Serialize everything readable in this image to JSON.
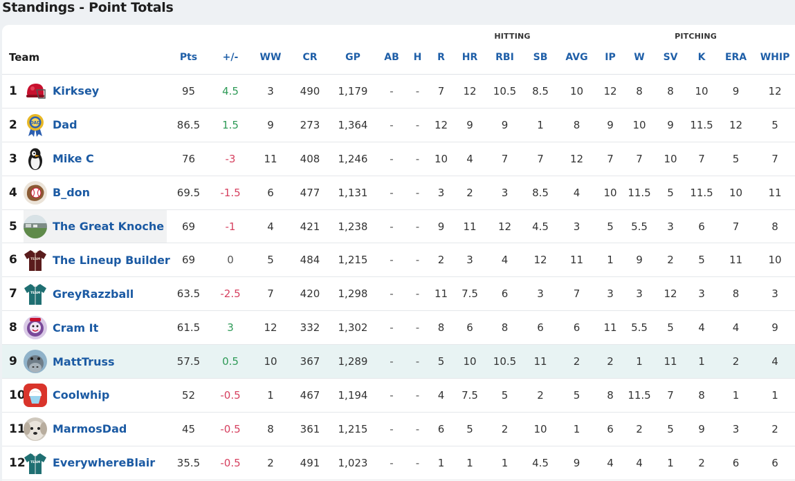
{
  "page": {
    "title": "Standings - Point Totals"
  },
  "groups": {
    "hitting": "HITTING",
    "pitching": "PITCHING"
  },
  "columns": [
    "Team",
    "Pts",
    "+/-",
    "WW",
    "CR",
    "GP",
    "AB",
    "H",
    "R",
    "HR",
    "RBI",
    "SB",
    "AVG",
    "IP",
    "W",
    "SV",
    "K",
    "ERA",
    "WHIP"
  ],
  "rows": [
    {
      "rank": "1",
      "team": "Kirksey",
      "pts": "95",
      "pm": "4.5",
      "ww": "3",
      "cr": "490",
      "gp": "1,179",
      "ab": "-",
      "h": "-",
      "r": "7",
      "hr": "12",
      "rbi": "10.5",
      "sb": "8.5",
      "avg": "10",
      "ip": "12",
      "w": "8",
      "sv": "8",
      "k": "10",
      "era": "9",
      "whip": "12",
      "logo": "helmet-logo"
    },
    {
      "rank": "2",
      "team": "Dad",
      "pts": "86.5",
      "pm": "1.5",
      "ww": "9",
      "cr": "273",
      "gp": "1,364",
      "ab": "-",
      "h": "-",
      "r": "12",
      "hr": "9",
      "rbi": "9",
      "sb": "1",
      "avg": "8",
      "ip": "9",
      "w": "10",
      "sv": "9",
      "k": "11.5",
      "era": "12",
      "whip": "5",
      "logo": "award-ribbon-logo"
    },
    {
      "rank": "3",
      "team": "Mike C",
      "pts": "76",
      "pm": "-3",
      "ww": "11",
      "cr": "408",
      "gp": "1,246",
      "ab": "-",
      "h": "-",
      "r": "10",
      "hr": "4",
      "rbi": "7",
      "sb": "7",
      "avg": "12",
      "ip": "7",
      "w": "7",
      "sv": "10",
      "k": "7",
      "era": "5",
      "whip": "7",
      "logo": "penguin-logo"
    },
    {
      "rank": "4",
      "team": "B_don",
      "pts": "69.5",
      "pm": "-1.5",
      "ww": "6",
      "cr": "477",
      "gp": "1,131",
      "ab": "-",
      "h": "-",
      "r": "3",
      "hr": "2",
      "rbi": "3",
      "sb": "8.5",
      "avg": "4",
      "ip": "10",
      "w": "11.5",
      "sv": "5",
      "k": "11.5",
      "era": "10",
      "whip": "11",
      "logo": "baseball-glove-logo"
    },
    {
      "rank": "5",
      "team": "The Great Knoche",
      "pts": "69",
      "pm": "-1",
      "ww": "4",
      "cr": "421",
      "gp": "1,238",
      "ab": "-",
      "h": "-",
      "r": "9",
      "hr": "11",
      "rbi": "12",
      "sb": "4.5",
      "avg": "3",
      "ip": "5",
      "w": "5.5",
      "sv": "3",
      "k": "6",
      "era": "7",
      "whip": "8",
      "logo": "stadium-photo-logo"
    },
    {
      "rank": "6",
      "team": "The Lineup Builder",
      "pts": "69",
      "pm": "0",
      "ww": "5",
      "cr": "484",
      "gp": "1,215",
      "ab": "-",
      "h": "-",
      "r": "2",
      "hr": "3",
      "rbi": "4",
      "sb": "12",
      "avg": "11",
      "ip": "1",
      "w": "9",
      "sv": "2",
      "k": "5",
      "era": "11",
      "whip": "10",
      "logo": "maroon-jersey-logo"
    },
    {
      "rank": "7",
      "team": "GreyRazzball",
      "pts": "63.5",
      "pm": "-2.5",
      "ww": "7",
      "cr": "420",
      "gp": "1,298",
      "ab": "-",
      "h": "-",
      "r": "11",
      "hr": "7.5",
      "rbi": "6",
      "sb": "3",
      "avg": "7",
      "ip": "3",
      "w": "3",
      "sv": "12",
      "k": "3",
      "era": "8",
      "whip": "3",
      "logo": "teal-jersey-logo"
    },
    {
      "rank": "8",
      "team": "Cram It",
      "pts": "61.5",
      "pm": "3",
      "ww": "12",
      "cr": "332",
      "gp": "1,302",
      "ab": "-",
      "h": "-",
      "r": "8",
      "hr": "6",
      "rbi": "8",
      "sb": "6",
      "avg": "6",
      "ip": "11",
      "w": "5.5",
      "sv": "5",
      "k": "4",
      "era": "4",
      "whip": "9",
      "logo": "purple-mascot-logo"
    },
    {
      "rank": "9",
      "team": "MattTruss",
      "pts": "57.5",
      "pm": "0.5",
      "ww": "10",
      "cr": "367",
      "gp": "1,289",
      "ab": "-",
      "h": "-",
      "r": "5",
      "hr": "10",
      "rbi": "10.5",
      "sb": "11",
      "avg": "2",
      "ip": "2",
      "w": "1",
      "sv": "11",
      "k": "1",
      "era": "2",
      "whip": "4",
      "logo": "hippo-logo"
    },
    {
      "rank": "10",
      "team": "Coolwhip",
      "pts": "52",
      "pm": "-0.5",
      "ww": "1",
      "cr": "467",
      "gp": "1,194",
      "ab": "-",
      "h": "-",
      "r": "4",
      "hr": "7.5",
      "rbi": "5",
      "sb": "2",
      "avg": "5",
      "ip": "8",
      "w": "11.5",
      "sv": "7",
      "k": "8",
      "era": "1",
      "whip": "1",
      "logo": "whipped-cream-logo"
    },
    {
      "rank": "11",
      "team": "MarmosDad",
      "pts": "45",
      "pm": "-0.5",
      "ww": "8",
      "cr": "361",
      "gp": "1,215",
      "ab": "-",
      "h": "-",
      "r": "6",
      "hr": "5",
      "rbi": "2",
      "sb": "10",
      "avg": "1",
      "ip": "6",
      "w": "2",
      "sv": "5",
      "k": "9",
      "era": "3",
      "whip": "2",
      "logo": "dog-photo-logo"
    },
    {
      "rank": "12",
      "team": "EverywhereBlair",
      "pts": "35.5",
      "pm": "-0.5",
      "ww": "2",
      "cr": "491",
      "gp": "1,023",
      "ab": "-",
      "h": "-",
      "r": "1",
      "hr": "1",
      "rbi": "1",
      "sb": "4.5",
      "avg": "9",
      "ip": "4",
      "w": "4",
      "sv": "1",
      "k": "2",
      "era": "6",
      "whip": "6",
      "logo": "teal-jersey-logo"
    }
  ],
  "colors": {
    "link": "#1b5aa3",
    "positive": "#2e9a57",
    "negative": "#d6405f",
    "highlight": "#e8f3f3"
  }
}
